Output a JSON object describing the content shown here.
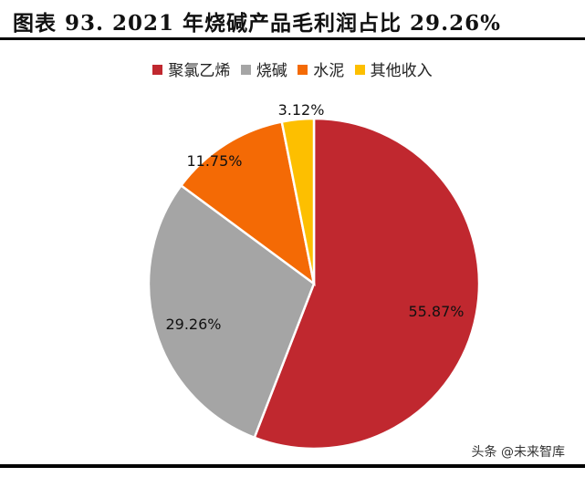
{
  "title": "图表 93. 2021 年烧碱产品毛利润占比 29.26%",
  "watermark": "头条 @未来智库",
  "legend": [
    {
      "label": "聚氯乙烯",
      "color": "#C0282F"
    },
    {
      "label": "烧碱",
      "color": "#A5A5A5"
    },
    {
      "label": "水泥",
      "color": "#F46A05"
    },
    {
      "label": "其他收入",
      "color": "#FDBF00"
    }
  ],
  "chart_data": {
    "type": "pie",
    "title": "2021 年烧碱产品毛利润占比 29.26%",
    "categories": [
      "聚氯乙烯",
      "烧碱",
      "水泥",
      "其他收入"
    ],
    "values": [
      55.87,
      29.26,
      11.75,
      3.12
    ],
    "labels": [
      "55.87%",
      "29.26%",
      "11.75%",
      "3.12%"
    ],
    "colors": [
      "#C0282F",
      "#A5A5A5",
      "#F46A05",
      "#FDBF00"
    ],
    "start_angle_deg": 0,
    "direction": "clockwise",
    "legend_position": "top"
  }
}
